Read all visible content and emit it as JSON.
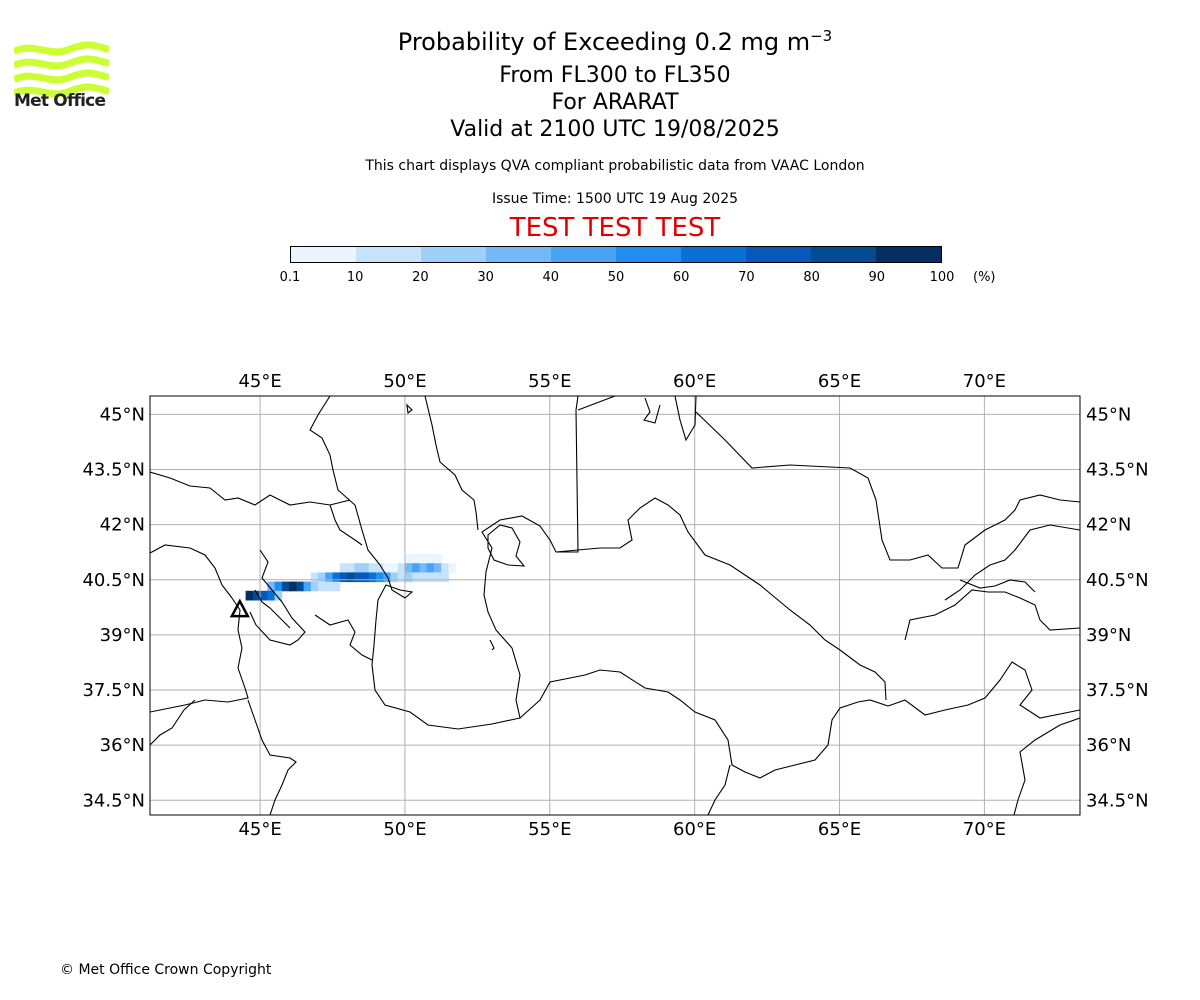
{
  "title": {
    "line1_prefix": "Probability of Exceeding 0.2 mg m",
    "line1_sup": "−3",
    "line2": "From FL300 to FL350",
    "line3": "For ARARAT",
    "line4": "Valid at 2100 UTC 19/08/2025"
  },
  "disclaimer": "This chart displays QVA compliant probabilistic data from VAAC London",
  "issue_time": "Issue Time: 1500 UTC 19 Aug 2025",
  "test_banner": "TEST TEST TEST",
  "logo": {
    "text": "Met Office",
    "color": "#ccff33"
  },
  "colorbar": {
    "ticks": [
      "0.1",
      "10",
      "20",
      "30",
      "40",
      "50",
      "60",
      "70",
      "80",
      "90",
      "100"
    ],
    "unit": "(%)",
    "colors": [
      "#eaf5ff",
      "#c6e3fb",
      "#9fd0fa",
      "#73b8f7",
      "#47a4f5",
      "#1f8ef0",
      "#0a6fd6",
      "#0659b8",
      "#034b92",
      "#022e62"
    ]
  },
  "map": {
    "lon_range": [
      41.2,
      73.3
    ],
    "lat_range": [
      34.1,
      45.5
    ],
    "lon_ticks": [
      45,
      50,
      55,
      60,
      65,
      70
    ],
    "lat_ticks": [
      45,
      43.5,
      42,
      40.5,
      39,
      37.5,
      36,
      34.5
    ],
    "lon_labels": [
      "45°E",
      "50°E",
      "55°E",
      "60°E",
      "65°E",
      "70°E"
    ],
    "lat_labels": [
      "45°N",
      "43.5°N",
      "42°N",
      "40.5°N",
      "39°N",
      "37.5°N",
      "36°N",
      "34.5°N"
    ],
    "volcano_marker": {
      "lon": 44.3,
      "lat": 39.7,
      "icon": "volcano-triangle-icon"
    },
    "ash_cells": [
      {
        "lon": 50.0,
        "lat": 40.95,
        "p": 5
      },
      {
        "lon": 50.25,
        "lat": 40.95,
        "p": 5
      },
      {
        "lon": 50.5,
        "lat": 40.95,
        "p": 5
      },
      {
        "lon": 50.75,
        "lat": 40.95,
        "p": 5
      },
      {
        "lon": 51.0,
        "lat": 40.95,
        "p": 5
      },
      {
        "lon": 47.75,
        "lat": 40.7,
        "p": 15
      },
      {
        "lon": 48.0,
        "lat": 40.7,
        "p": 15
      },
      {
        "lon": 48.25,
        "lat": 40.7,
        "p": 25
      },
      {
        "lon": 48.5,
        "lat": 40.7,
        "p": 25
      },
      {
        "lon": 48.75,
        "lat": 40.7,
        "p": 15
      },
      {
        "lon": 49.0,
        "lat": 40.7,
        "p": 15
      },
      {
        "lon": 49.25,
        "lat": 40.7,
        "p": 5
      },
      {
        "lon": 49.5,
        "lat": 40.7,
        "p": 5
      },
      {
        "lon": 49.75,
        "lat": 40.7,
        "p": 15
      },
      {
        "lon": 50.0,
        "lat": 40.7,
        "p": 35
      },
      {
        "lon": 50.25,
        "lat": 40.7,
        "p": 45
      },
      {
        "lon": 50.5,
        "lat": 40.7,
        "p": 35
      },
      {
        "lon": 50.75,
        "lat": 40.7,
        "p": 45
      },
      {
        "lon": 51.0,
        "lat": 40.7,
        "p": 35
      },
      {
        "lon": 51.25,
        "lat": 40.7,
        "p": 15
      },
      {
        "lon": 51.5,
        "lat": 40.7,
        "p": 5
      },
      {
        "lon": 46.75,
        "lat": 40.45,
        "p": 15
      },
      {
        "lon": 47.0,
        "lat": 40.45,
        "p": 25
      },
      {
        "lon": 47.25,
        "lat": 40.45,
        "p": 45
      },
      {
        "lon": 47.5,
        "lat": 40.45,
        "p": 65
      },
      {
        "lon": 47.75,
        "lat": 40.45,
        "p": 75
      },
      {
        "lon": 48.0,
        "lat": 40.45,
        "p": 85
      },
      {
        "lon": 48.25,
        "lat": 40.45,
        "p": 75
      },
      {
        "lon": 48.5,
        "lat": 40.45,
        "p": 75
      },
      {
        "lon": 48.75,
        "lat": 40.45,
        "p": 65
      },
      {
        "lon": 49.0,
        "lat": 40.45,
        "p": 55
      },
      {
        "lon": 49.25,
        "lat": 40.45,
        "p": 45
      },
      {
        "lon": 49.5,
        "lat": 40.45,
        "p": 25
      },
      {
        "lon": 49.75,
        "lat": 40.45,
        "p": 15
      },
      {
        "lon": 50.0,
        "lat": 40.45,
        "p": 25
      },
      {
        "lon": 50.25,
        "lat": 40.45,
        "p": 15
      },
      {
        "lon": 50.5,
        "lat": 40.45,
        "p": 15
      },
      {
        "lon": 50.75,
        "lat": 40.45,
        "p": 15
      },
      {
        "lon": 51.0,
        "lat": 40.45,
        "p": 15
      },
      {
        "lon": 51.25,
        "lat": 40.45,
        "p": 15
      },
      {
        "lon": 45.25,
        "lat": 40.2,
        "p": 35
      },
      {
        "lon": 45.5,
        "lat": 40.2,
        "p": 55
      },
      {
        "lon": 45.75,
        "lat": 40.2,
        "p": 85
      },
      {
        "lon": 46.0,
        "lat": 40.2,
        "p": 95
      },
      {
        "lon": 46.25,
        "lat": 40.2,
        "p": 85
      },
      {
        "lon": 46.5,
        "lat": 40.2,
        "p": 45
      },
      {
        "lon": 46.75,
        "lat": 40.2,
        "p": 25
      },
      {
        "lon": 47.0,
        "lat": 40.2,
        "p": 15
      },
      {
        "lon": 47.25,
        "lat": 40.2,
        "p": 15
      },
      {
        "lon": 47.5,
        "lat": 40.2,
        "p": 15
      },
      {
        "lon": 44.5,
        "lat": 39.95,
        "p": 95
      },
      {
        "lon": 44.75,
        "lat": 39.95,
        "p": 85
      },
      {
        "lon": 45.0,
        "lat": 39.95,
        "p": 75
      },
      {
        "lon": 45.25,
        "lat": 39.95,
        "p": 65
      },
      {
        "lon": 45.5,
        "lat": 39.95,
        "p": 25
      }
    ]
  },
  "copyright": "© Met Office Crown Copyright"
}
